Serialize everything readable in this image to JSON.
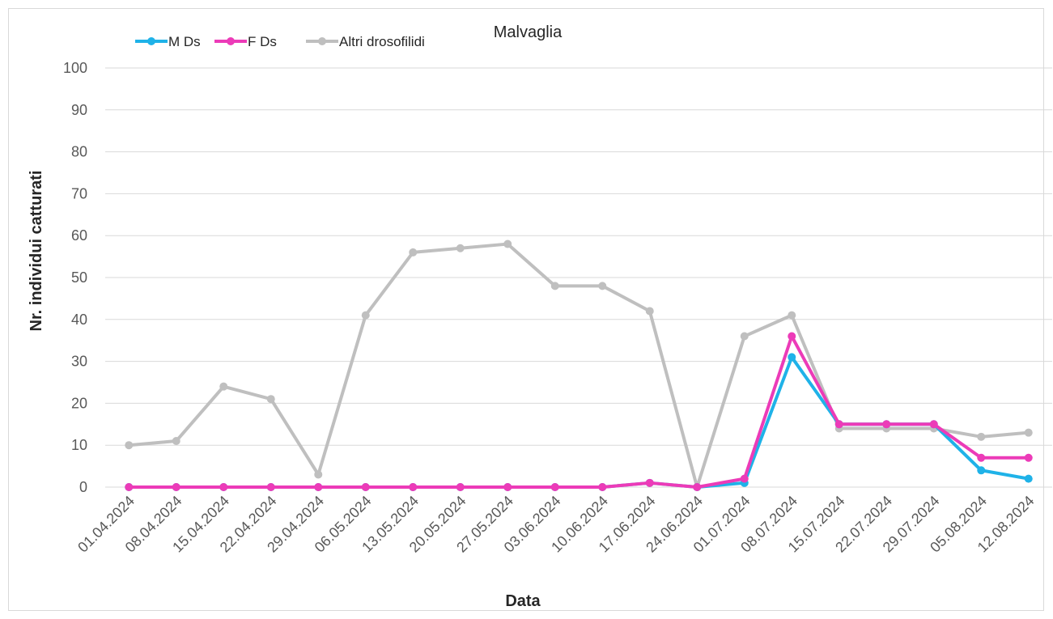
{
  "chart_data": {
    "type": "line",
    "title": "Malvaglia",
    "xlabel": "Data",
    "ylabel": "Nr. individui catturati",
    "ylim": [
      0,
      100
    ],
    "yticks": [
      0,
      10,
      20,
      30,
      40,
      50,
      60,
      70,
      80,
      90,
      100
    ],
    "grid": true,
    "legend_position": "top-left",
    "categories": [
      "01.04.2024",
      "08.04.2024",
      "15.04.2024",
      "22.04.2024",
      "29.04.2024",
      "06.05.2024",
      "13.05.2024",
      "20.05.2024",
      "27.05.2024",
      "03.06.2024",
      "10.06.2024",
      "17.06.2024",
      "24.06.2024",
      "01.07.2024",
      "08.07.2024",
      "15.07.2024",
      "22.07.2024",
      "29.07.2024",
      "05.08.2024",
      "12.08.2024"
    ],
    "series": [
      {
        "name": "M Ds",
        "color": "#1fb2e8",
        "values": [
          0,
          0,
          0,
          0,
          0,
          0,
          0,
          0,
          0,
          0,
          0,
          1,
          0,
          1,
          31,
          15,
          15,
          15,
          4,
          2
        ]
      },
      {
        "name": "F Ds",
        "color": "#ec3bb8",
        "values": [
          0,
          0,
          0,
          0,
          0,
          0,
          0,
          0,
          0,
          0,
          0,
          1,
          0,
          2,
          36,
          15,
          15,
          15,
          7,
          7
        ]
      },
      {
        "name": "Altri drosofilidi",
        "color": "#bfbfbf",
        "values": [
          10,
          11,
          24,
          21,
          3,
          41,
          56,
          57,
          58,
          48,
          48,
          42,
          0,
          36,
          41,
          14,
          14,
          14,
          12,
          13
        ]
      }
    ]
  }
}
